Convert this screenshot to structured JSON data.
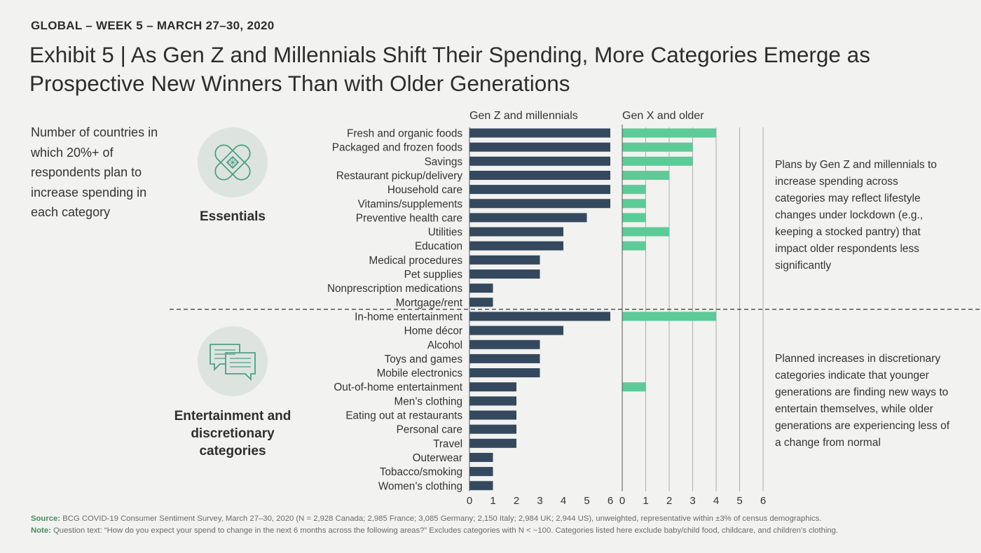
{
  "header": {
    "kicker": "GLOBAL – WEEK 5 – MARCH 27–30, 2020",
    "title": "Exhibit 5 | As Gen Z and Millennials Shift Their Spending, More Categories Emerge as Prospective New Winners Than with Older Generations"
  },
  "left_note": "Number of countries in which 20%+ of respondents plan to increase spending in each category",
  "groups": {
    "essentials": {
      "label": "Essentials",
      "icon": "bandage-icon"
    },
    "entertainment": {
      "label": "Entertainment and discretionary categories",
      "icon": "chat-bubbles-icon"
    }
  },
  "side_notes": {
    "essentials": "Plans by Gen Z and millennials to increase spending across categories may reflect lifestyle changes under lockdown (e.g., keeping a stocked pantry) that impact older respondents less significantly",
    "entertainment": "Planned increases in discretionary categories indicate that younger generations are finding new ways to entertain themselves, while older generations are experiencing less of a change from normal"
  },
  "footnotes": {
    "source_label": "Source:",
    "source_text": " BCG COVID-19 Consumer Sentiment Survey, March 27–30, 2020 (N = 2,928 Canada; 2,985 France; 3,085 Germany; 2,150 Italy; 2,984 UK; 2,944 US), unweighted, representative within ±3% of census demographics.",
    "note_label": "Note:",
    "note_text": " Question text: “How do you expect your spend to change in the next 6 months across the following areas?” Excludes categories with N < ~100. Categories listed here exclude baby/child food, childcare, and children’s clothing."
  },
  "colors": {
    "gen_z": "#34495e",
    "gen_x": "#5ccb98",
    "icon_bg": "#dde4e0",
    "icon_stroke": "#4f9e86"
  },
  "chart_data": {
    "type": "bar",
    "orientation": "horizontal",
    "xlim": [
      0,
      6
    ],
    "ticks": [
      0,
      1,
      2,
      3,
      4,
      5,
      6
    ],
    "panels": [
      {
        "name": "Gen Z and millennials",
        "key": "gen_z"
      },
      {
        "name": "Gen X and older",
        "key": "gen_x"
      }
    ],
    "categories": [
      "Fresh and organic foods",
      "Packaged and frozen foods",
      "Savings",
      "Restaurant pickup/delivery",
      "Household care",
      "Vitamins/supplements",
      "Preventive health care",
      "Utilities",
      "Education",
      "Medical procedures",
      "Pet supplies",
      "Nonprescription medications",
      "Mortgage/rent",
      "In-home entertainment",
      "Home décor",
      "Alcohol",
      "Toys and games",
      "Mobile electronics",
      "Out-of-home entertainment",
      "Men’s clothing",
      "Eating out at restaurants",
      "Personal care",
      "Travel",
      "Outerwear",
      "Tobacco/smoking",
      "Women’s clothing"
    ],
    "group_sizes": [
      13,
      13
    ],
    "series": [
      {
        "name": "Gen Z and millennials",
        "values": [
          6,
          6,
          6,
          6,
          6,
          6,
          5,
          4,
          4,
          3,
          3,
          1,
          1,
          6,
          4,
          3,
          3,
          3,
          2,
          2,
          2,
          2,
          2,
          1,
          1,
          1
        ]
      },
      {
        "name": "Gen X and older",
        "values": [
          4,
          3,
          3,
          2,
          1,
          1,
          1,
          2,
          1,
          0,
          0,
          0,
          0,
          4,
          0,
          0,
          0,
          0,
          1,
          0,
          0,
          0,
          0,
          0,
          0,
          0
        ]
      }
    ]
  }
}
